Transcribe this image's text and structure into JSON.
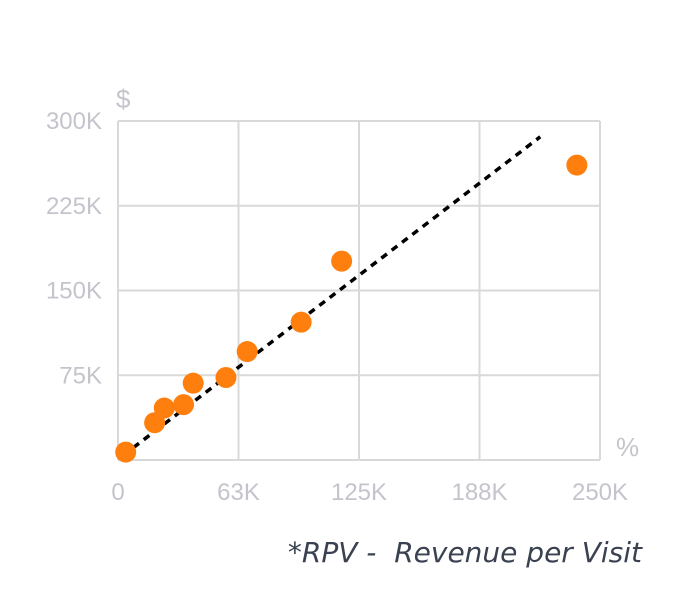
{
  "chart_data": {
    "type": "scatter",
    "title": "",
    "xlabel": "%",
    "ylabel": "$",
    "xlim": [
      0,
      250000
    ],
    "ylim": [
      0,
      300000
    ],
    "x_ticks": [
      0,
      62500,
      125000,
      187500,
      250000
    ],
    "x_tick_labels": [
      "0",
      "63K",
      "125K",
      "188K",
      "250K"
    ],
    "y_ticks": [
      75000,
      150000,
      225000,
      300000
    ],
    "y_tick_labels": [
      "75K",
      "150K",
      "225K",
      "300K"
    ],
    "grid": true,
    "legend": "none",
    "points": [
      {
        "x": 4000,
        "y": 7000
      },
      {
        "x": 19000,
        "y": 33000
      },
      {
        "x": 24000,
        "y": 46000
      },
      {
        "x": 34000,
        "y": 49000
      },
      {
        "x": 39000,
        "y": 68000
      },
      {
        "x": 56000,
        "y": 73000
      },
      {
        "x": 67000,
        "y": 96000
      },
      {
        "x": 95000,
        "y": 122000
      },
      {
        "x": 116000,
        "y": 176000
      },
      {
        "x": 238000,
        "y": 261000
      }
    ],
    "trendline": {
      "x": [
        8000,
        219000
      ],
      "y": [
        11000,
        286000
      ],
      "style": "dotted"
    },
    "colors": {
      "points": "#ff7f0e",
      "trendline": "#000000",
      "grid": "#d9d9d9",
      "tick_text": "#c4c4cc"
    }
  },
  "caption": "*RPV -  Revenue per Visit"
}
